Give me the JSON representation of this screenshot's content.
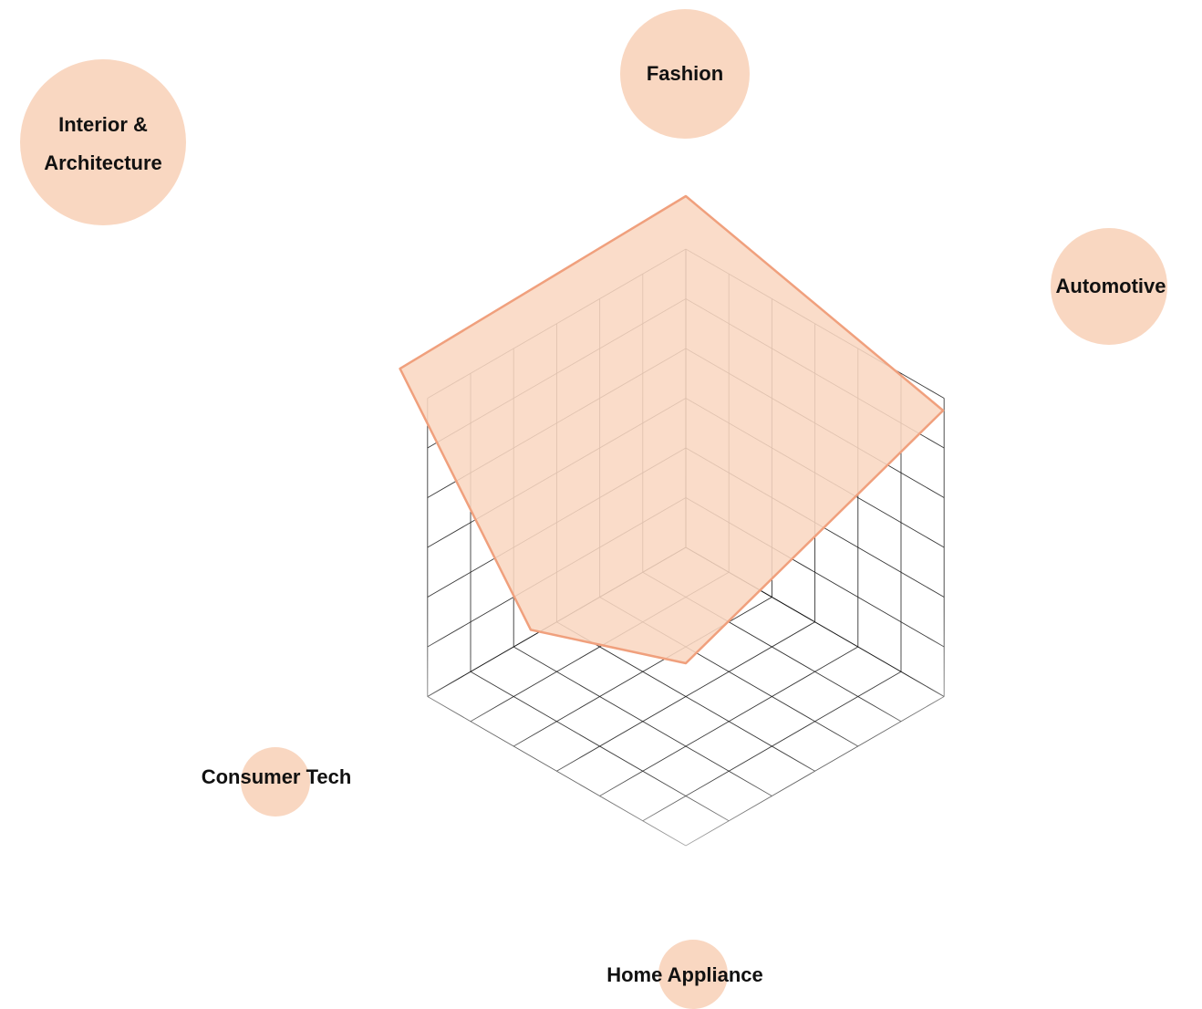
{
  "chart_data": {
    "type": "radar",
    "categories": [
      "Fashion",
      "Automotive",
      "Home Appliance",
      "Consumer Tech",
      "Interior & Architecture"
    ],
    "series": [
      {
        "values": [
          10,
          8.3,
          3.3,
          5.0,
          9.6
        ]
      }
    ],
    "category_weights": [
      70,
      64,
      38,
      38,
      90
    ],
    "range": [
      0,
      10
    ],
    "grid_steps": 6,
    "grid": true,
    "colors": {
      "fill": "#f9d7c1",
      "stroke": "#f0a07d",
      "bubble": "#f9d7c1",
      "grid": "#000000",
      "text": "#111111"
    }
  }
}
